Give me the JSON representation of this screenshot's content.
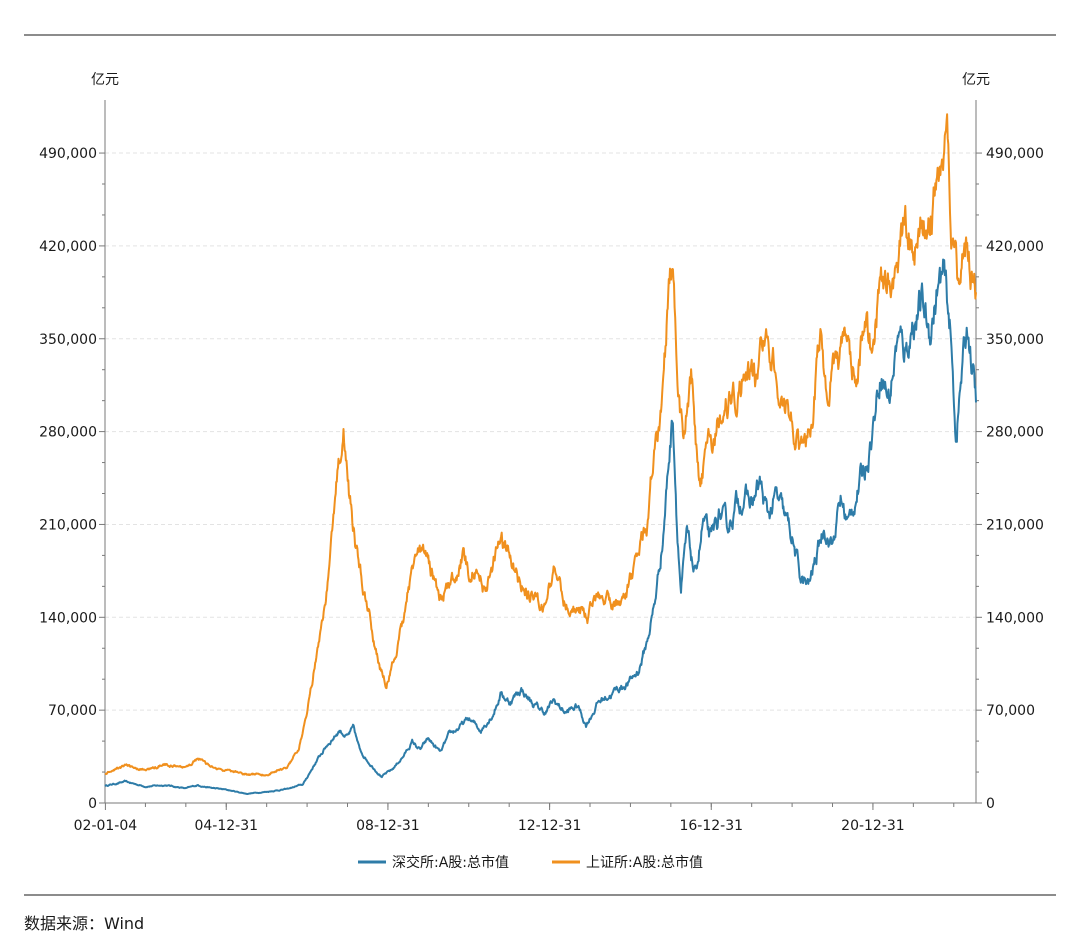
{
  "source": {
    "label": "数据来源：Wind"
  },
  "chart_data": {
    "type": "line",
    "title": "",
    "ylabel_left": "亿元",
    "ylabel_right": "亿元",
    "ylim": [
      0,
      530000
    ],
    "yticks": [
      0,
      70000,
      140000,
      210000,
      280000,
      350000,
      420000,
      490000
    ],
    "ytick_labels": [
      "0",
      "70,000",
      "140,000",
      "210,000",
      "280,000",
      "350,000",
      "420,000",
      "490,000"
    ],
    "xlim": [
      2002.0,
      2023.55
    ],
    "xticks": [
      2002.01,
      2005.0,
      2009.0,
      2013.0,
      2017.0,
      2021.0
    ],
    "xtick_labels": [
      "02-01-04",
      "04-12-31",
      "08-12-31",
      "12-12-31",
      "16-12-31",
      "20-12-31"
    ],
    "legend_position": "bottom",
    "series": [
      {
        "name": "深交所:A股:总市值",
        "color": "#2e7ca8",
        "points": [
          [
            2002.0,
            13000
          ],
          [
            2002.5,
            16000
          ],
          [
            2003.0,
            12500
          ],
          [
            2003.5,
            13500
          ],
          [
            2004.0,
            11000
          ],
          [
            2004.3,
            13500
          ],
          [
            2004.6,
            11500
          ],
          [
            2005.0,
            10000
          ],
          [
            2005.5,
            7000
          ],
          [
            2006.0,
            8500
          ],
          [
            2006.5,
            10500
          ],
          [
            2006.9,
            14000
          ],
          [
            2007.2,
            30000
          ],
          [
            2007.5,
            44000
          ],
          [
            2007.8,
            55000
          ],
          [
            2008.0,
            50000
          ],
          [
            2008.15,
            56000
          ],
          [
            2008.3,
            40000
          ],
          [
            2008.55,
            30000
          ],
          [
            2008.85,
            20000
          ],
          [
            2009.1,
            25000
          ],
          [
            2009.4,
            36000
          ],
          [
            2009.6,
            46000
          ],
          [
            2009.8,
            40000
          ],
          [
            2010.0,
            48000
          ],
          [
            2010.3,
            38000
          ],
          [
            2010.5,
            50000
          ],
          [
            2010.8,
            58000
          ],
          [
            2011.0,
            63000
          ],
          [
            2011.3,
            55000
          ],
          [
            2011.6,
            68000
          ],
          [
            2011.8,
            83000
          ],
          [
            2012.0,
            76000
          ],
          [
            2012.3,
            86000
          ],
          [
            2012.6,
            74000
          ],
          [
            2012.9,
            68000
          ],
          [
            2013.1,
            77000
          ],
          [
            2013.4,
            68000
          ],
          [
            2013.7,
            73000
          ],
          [
            2013.9,
            59000
          ],
          [
            2014.2,
            76000
          ],
          [
            2014.5,
            82000
          ],
          [
            2014.8,
            88000
          ],
          [
            2015.0,
            92000
          ],
          [
            2015.2,
            100000
          ],
          [
            2015.4,
            120000
          ],
          [
            2015.6,
            150000
          ],
          [
            2015.8,
            200000
          ],
          [
            2015.95,
            260000
          ],
          [
            2016.05,
            295000
          ],
          [
            2016.15,
            215000
          ],
          [
            2016.25,
            160000
          ],
          [
            2016.4,
            200000
          ],
          [
            2016.6,
            170000
          ],
          [
            2016.8,
            212000
          ],
          [
            2017.0,
            195000
          ],
          [
            2017.2,
            218000
          ],
          [
            2017.4,
            205000
          ],
          [
            2017.6,
            225000
          ],
          [
            2017.8,
            232000
          ],
          [
            2018.0,
            225000
          ],
          [
            2018.2,
            240000
          ],
          [
            2018.4,
            215000
          ],
          [
            2018.6,
            230000
          ],
          [
            2018.8,
            215000
          ],
          [
            2019.0,
            200000
          ],
          [
            2019.2,
            170000
          ],
          [
            2019.4,
            162000
          ],
          [
            2019.6,
            185000
          ],
          [
            2019.8,
            210000
          ],
          [
            2020.0,
            195000
          ],
          [
            2020.2,
            228000
          ],
          [
            2020.4,
            210000
          ],
          [
            2020.6,
            235000
          ],
          [
            2020.8,
            252000
          ],
          [
            2021.0,
            285000
          ],
          [
            2021.2,
            330000
          ],
          [
            2021.4,
            305000
          ],
          [
            2021.6,
            350000
          ],
          [
            2021.8,
            340000
          ],
          [
            2022.0,
            365000
          ],
          [
            2022.2,
            375000
          ],
          [
            2022.4,
            355000
          ],
          [
            2022.6,
            388000
          ],
          [
            2022.75,
            395000
          ],
          [
            2022.9,
            360000
          ],
          [
            2023.05,
            278000
          ],
          [
            2023.2,
            325000
          ],
          [
            2023.35,
            360000
          ],
          [
            2023.55,
            302000
          ]
        ]
      },
      {
        "name": "上证所:A股:总市值",
        "color": "#f0901e",
        "points": [
          [
            2002.0,
            22000
          ],
          [
            2002.5,
            28000
          ],
          [
            2003.0,
            25000
          ],
          [
            2003.5,
            28500
          ],
          [
            2004.0,
            26000
          ],
          [
            2004.3,
            34000
          ],
          [
            2004.6,
            27000
          ],
          [
            2005.0,
            24000
          ],
          [
            2005.5,
            22000
          ],
          [
            2006.0,
            21000
          ],
          [
            2006.5,
            27000
          ],
          [
            2006.8,
            42000
          ],
          [
            2007.0,
            70000
          ],
          [
            2007.3,
            120000
          ],
          [
            2007.55,
            180000
          ],
          [
            2007.75,
            255000
          ],
          [
            2007.9,
            280000
          ],
          [
            2008.05,
            230000
          ],
          [
            2008.3,
            175000
          ],
          [
            2008.55,
            140000
          ],
          [
            2008.8,
            100000
          ],
          [
            2008.95,
            90000
          ],
          [
            2009.2,
            110000
          ],
          [
            2009.45,
            150000
          ],
          [
            2009.6,
            175000
          ],
          [
            2009.8,
            185000
          ],
          [
            2010.0,
            180000
          ],
          [
            2010.3,
            155000
          ],
          [
            2010.5,
            165000
          ],
          [
            2010.7,
            170000
          ],
          [
            2010.85,
            188000
          ],
          [
            2011.0,
            175000
          ],
          [
            2011.2,
            178000
          ],
          [
            2011.4,
            160000
          ],
          [
            2011.7,
            190000
          ],
          [
            2011.9,
            195000
          ],
          [
            2012.1,
            180000
          ],
          [
            2012.3,
            165000
          ],
          [
            2012.6,
            155000
          ],
          [
            2012.9,
            148000
          ],
          [
            2013.1,
            170000
          ],
          [
            2013.4,
            150000
          ],
          [
            2013.7,
            147000
          ],
          [
            2013.95,
            140000
          ],
          [
            2014.2,
            160000
          ],
          [
            2014.5,
            150000
          ],
          [
            2014.8,
            148000
          ],
          [
            2015.0,
            165000
          ],
          [
            2015.2,
            185000
          ],
          [
            2015.4,
            210000
          ],
          [
            2015.6,
            260000
          ],
          [
            2015.8,
            300000
          ],
          [
            2015.95,
            380000
          ],
          [
            2016.05,
            405000
          ],
          [
            2016.15,
            320000
          ],
          [
            2016.3,
            270000
          ],
          [
            2016.5,
            320000
          ],
          [
            2016.7,
            238000
          ],
          [
            2016.9,
            265000
          ],
          [
            2017.1,
            280000
          ],
          [
            2017.3,
            305000
          ],
          [
            2017.6,
            300000
          ],
          [
            2017.9,
            330000
          ],
          [
            2018.1,
            320000
          ],
          [
            2018.3,
            350000
          ],
          [
            2018.6,
            330000
          ],
          [
            2018.8,
            300000
          ],
          [
            2019.0,
            285000
          ],
          [
            2019.2,
            270000
          ],
          [
            2019.45,
            280000
          ],
          [
            2019.7,
            355000
          ],
          [
            2019.85,
            310000
          ],
          [
            2020.0,
            330000
          ],
          [
            2020.3,
            340000
          ],
          [
            2020.6,
            325000
          ],
          [
            2020.8,
            355000
          ],
          [
            2021.0,
            340000
          ],
          [
            2021.2,
            395000
          ],
          [
            2021.4,
            385000
          ],
          [
            2021.6,
            410000
          ],
          [
            2021.8,
            440000
          ],
          [
            2022.0,
            420000
          ],
          [
            2022.2,
            445000
          ],
          [
            2022.4,
            435000
          ],
          [
            2022.6,
            470000
          ],
          [
            2022.75,
            505000
          ],
          [
            2022.85,
            490000
          ],
          [
            2022.95,
            420000
          ],
          [
            2023.1,
            385000
          ],
          [
            2023.25,
            425000
          ],
          [
            2023.4,
            400000
          ],
          [
            2023.55,
            385000
          ]
        ]
      }
    ]
  }
}
